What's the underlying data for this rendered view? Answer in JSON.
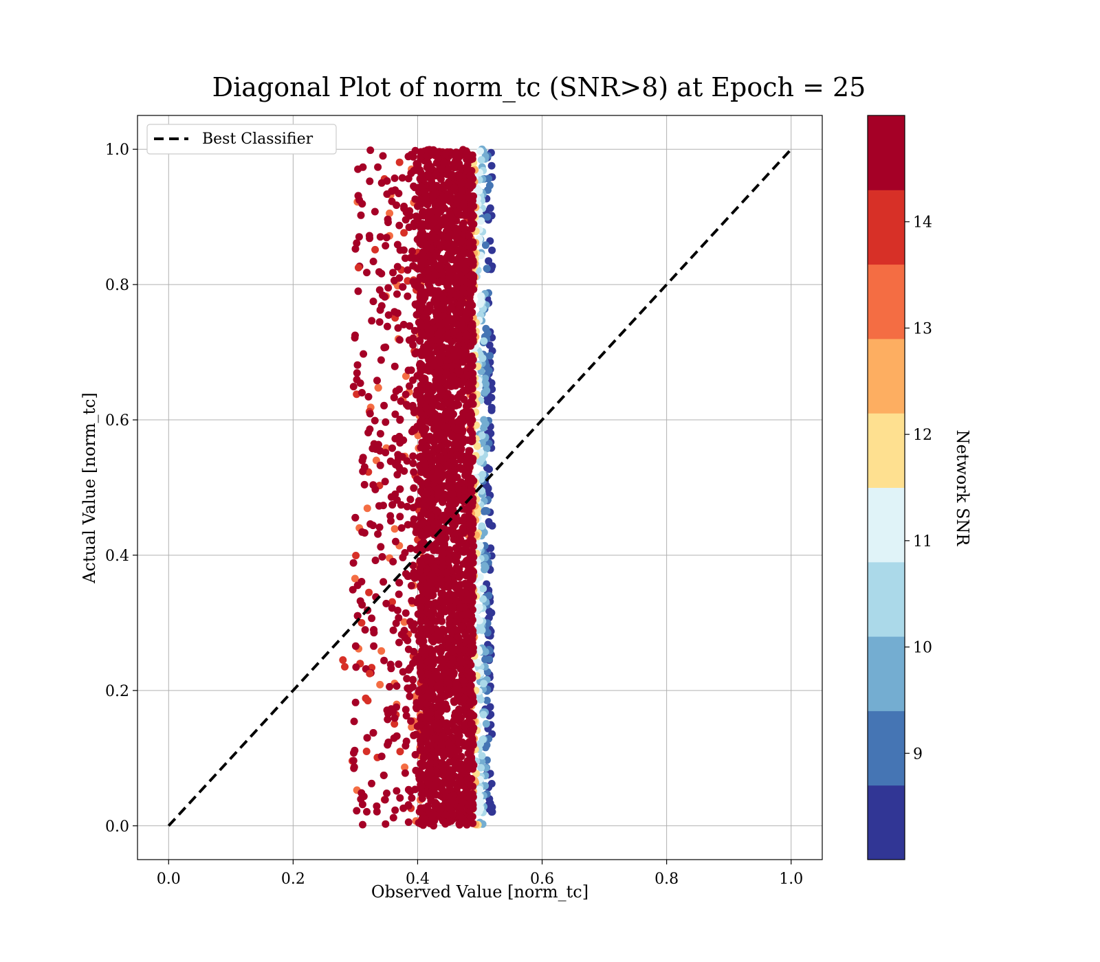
{
  "chart_data": {
    "type": "scatter",
    "title": "Diagonal Plot of norm_tc (SNR>8) at Epoch = 25",
    "xlabel": "Observed Value [norm_tc]",
    "ylabel": "Actual Value [norm_tc]",
    "xlim": [
      -0.05,
      1.05
    ],
    "ylim": [
      -0.05,
      1.05
    ],
    "xticks": [
      "0.0",
      "0.2",
      "0.4",
      "0.6",
      "0.8",
      "1.0"
    ],
    "yticks": [
      "0.0",
      "0.2",
      "0.4",
      "0.6",
      "0.8",
      "1.0"
    ],
    "grid": true,
    "legend": {
      "placement": "upper-left",
      "entries": [
        "Best Classifier"
      ]
    },
    "reference_line": {
      "name": "Best Classifier",
      "style": "dashed",
      "color": "#000000",
      "x": [
        0.0,
        1.0
      ],
      "y": [
        0.0,
        1.0
      ]
    },
    "scatter_description_ranges": {
      "dense_core_x": [
        0.4,
        0.49
      ],
      "full_x_extent": [
        0.28,
        0.52
      ],
      "y_extent": [
        0.0,
        1.0
      ]
    },
    "colorbar": {
      "label": "Network SNR",
      "range": [
        8.0,
        15.0
      ],
      "ticks": [
        "9",
        "10",
        "11",
        "12",
        "13",
        "14"
      ],
      "bins": [
        {
          "from": 8.0,
          "to": 8.7,
          "color": "#313695"
        },
        {
          "from": 8.7,
          "to": 9.4,
          "color": "#4575b4"
        },
        {
          "from": 9.4,
          "to": 10.1,
          "color": "#74add1"
        },
        {
          "from": 10.1,
          "to": 10.8,
          "color": "#abd9e9"
        },
        {
          "from": 10.8,
          "to": 11.5,
          "color": "#e0f3f8"
        },
        {
          "from": 11.5,
          "to": 12.2,
          "color": "#fee090"
        },
        {
          "from": 12.2,
          "to": 12.9,
          "color": "#fdae61"
        },
        {
          "from": 12.9,
          "to": 13.6,
          "color": "#f46d43"
        },
        {
          "from": 13.6,
          "to": 14.3,
          "color": "#d73027"
        },
        {
          "from": 14.3,
          "to": 15.0,
          "color": "#a50026"
        }
      ]
    }
  }
}
